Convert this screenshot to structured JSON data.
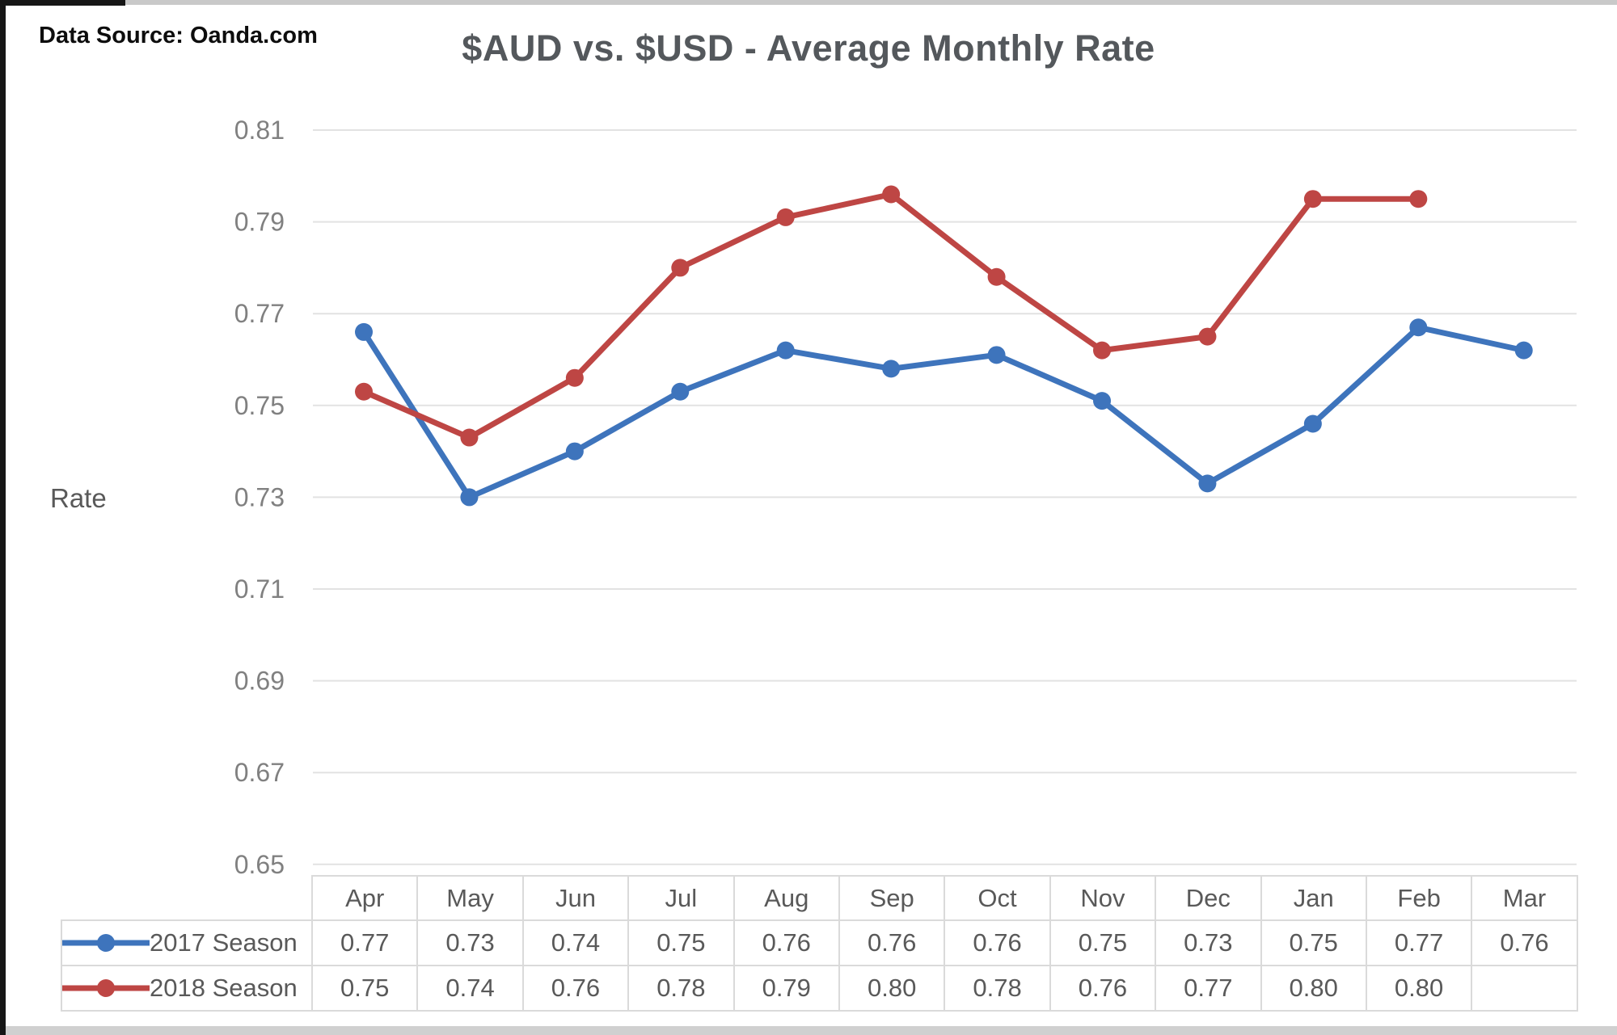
{
  "header": {
    "data_source": "Data Source: Oanda.com"
  },
  "chart_data": {
    "type": "line",
    "title": "$AUD vs. $USD - Average Monthly Rate",
    "ylabel": "Rate",
    "x": [
      "Apr",
      "May",
      "Jun",
      "Jul",
      "Aug",
      "Sep",
      "Oct",
      "Nov",
      "Dec",
      "Jan",
      "Feb",
      "Mar"
    ],
    "ylim": [
      0.65,
      0.81
    ],
    "ytick_step": 0.02,
    "yticks": [
      "0.81",
      "0.79",
      "0.77",
      "0.75",
      "0.73",
      "0.71",
      "0.69",
      "0.67",
      "0.65"
    ],
    "grid": "horizontal",
    "legend_position": "table-left",
    "series": [
      {
        "name": "2017 Season",
        "color": "#3E74BC",
        "values": [
          0.766,
          0.73,
          0.74,
          0.753,
          0.762,
          0.758,
          0.761,
          0.751,
          0.733,
          0.746,
          0.767,
          0.762
        ]
      },
      {
        "name": "2018 Season",
        "color": "#BE4644",
        "values": [
          0.753,
          0.743,
          0.756,
          0.78,
          0.791,
          0.796,
          0.778,
          0.762,
          0.765,
          0.795,
          0.795,
          null
        ]
      }
    ]
  },
  "table": {
    "rows": [
      {
        "label": "2017 Season",
        "color": "#3E74BC",
        "values": [
          "0.77",
          "0.73",
          "0.74",
          "0.75",
          "0.76",
          "0.76",
          "0.76",
          "0.75",
          "0.73",
          "0.75",
          "0.77",
          "0.76"
        ]
      },
      {
        "label": "2018 Season",
        "color": "#BE4644",
        "values": [
          "0.75",
          "0.74",
          "0.76",
          "0.78",
          "0.79",
          "0.80",
          "0.78",
          "0.76",
          "0.77",
          "0.80",
          "0.80",
          ""
        ]
      }
    ]
  },
  "colors": {
    "series_2017": "#3E74BC",
    "series_2018": "#BE4644",
    "gridline": "#e2e2e2",
    "tick_text": "#808080",
    "title_text": "#54585c",
    "table_border": "#dadada"
  }
}
